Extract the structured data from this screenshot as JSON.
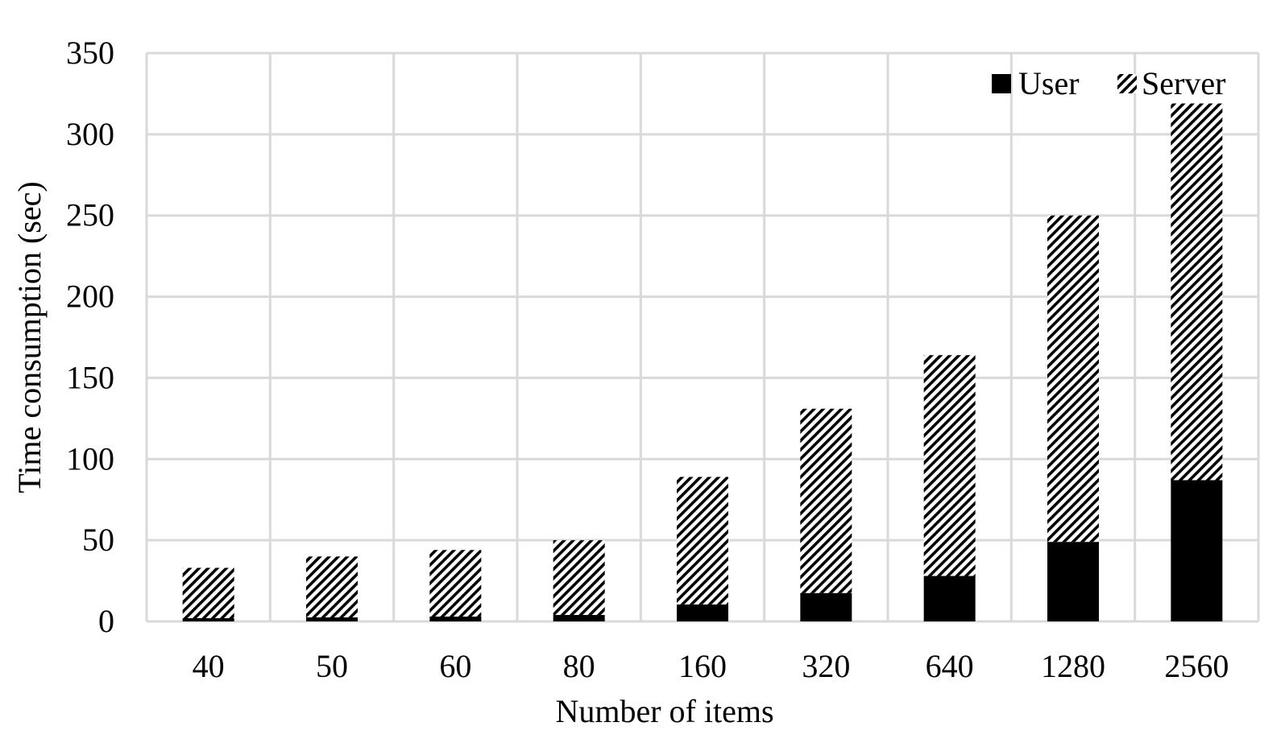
{
  "chart_data": {
    "type": "bar",
    "stacked": true,
    "title": "",
    "xlabel": "Number of items",
    "ylabel": "Time consumption (sec)",
    "categories": [
      "40",
      "50",
      "60",
      "80",
      "160",
      "320",
      "640",
      "1280",
      "2560"
    ],
    "ylim": [
      0,
      350
    ],
    "yticks": [
      0,
      50,
      100,
      150,
      200,
      250,
      300,
      350
    ],
    "grid": true,
    "legend_position": "top-right",
    "series": [
      {
        "name": "User",
        "fill": "solid-black",
        "color": "#000000",
        "values": [
          2,
          2.5,
          3,
          4,
          10.5,
          17.5,
          28,
          49,
          87
        ]
      },
      {
        "name": "Server",
        "fill": "diagonal-hatch",
        "color": "#000000",
        "values": [
          31,
          37.5,
          41,
          46,
          78.5,
          113.5,
          136,
          201,
          232
        ]
      }
    ],
    "gridline_color": "#d9d9d9"
  }
}
